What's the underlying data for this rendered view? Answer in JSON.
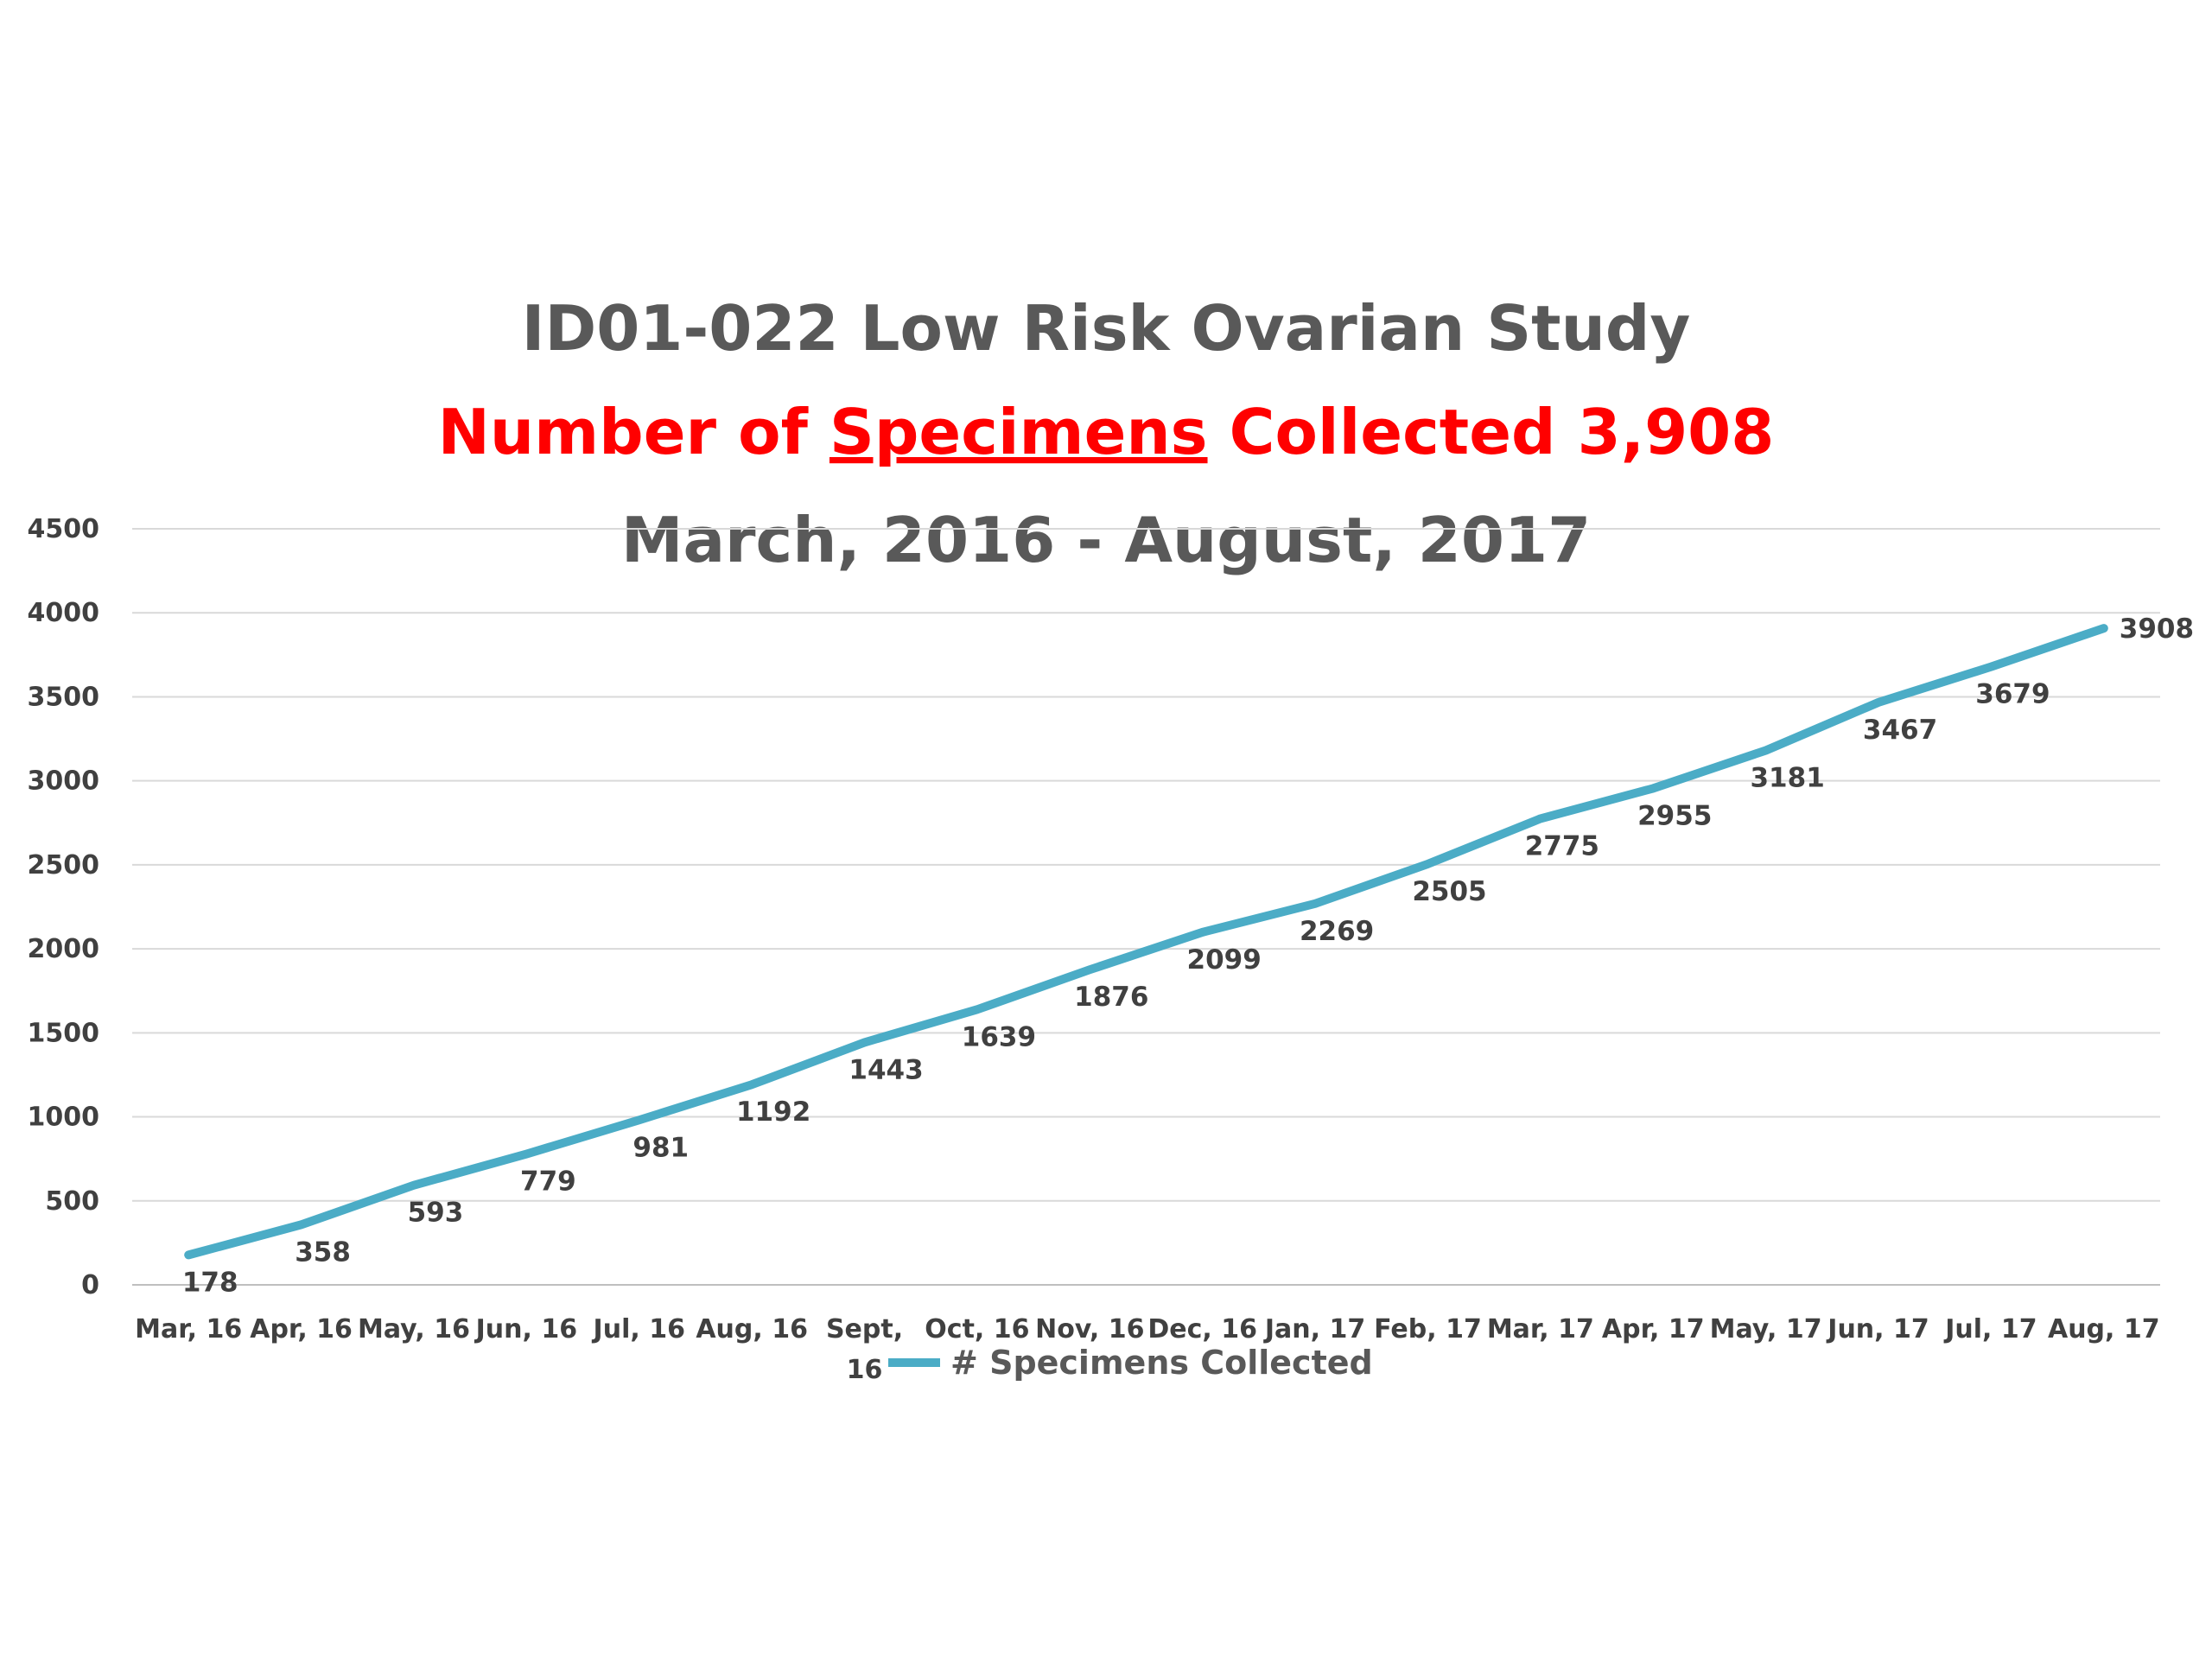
{
  "chart_data": {
    "type": "line",
    "title": "ID01-022 Low Risk Ovarian Study",
    "subtitle_prefix": "Number of ",
    "subtitle_underlined": "Specimens",
    "subtitle_suffix": " Collected 3,908",
    "date_range": "March, 2016 - August, 2017",
    "categories": [
      "Mar, 16",
      "Apr, 16",
      "May, 16",
      "Jun, 16",
      "Jul, 16",
      "Aug, 16",
      "Sept, 16",
      "Oct, 16",
      "Nov, 16",
      "Dec, 16",
      "Jan, 17",
      "Feb, 17",
      "Mar, 17",
      "Apr, 17",
      "May, 17",
      "Jun, 17",
      "Jul, 17",
      "Aug, 17"
    ],
    "series": [
      {
        "name": "# Specimens Collected",
        "values": [
          178,
          358,
          593,
          779,
          981,
          1192,
          1443,
          1639,
          1876,
          2099,
          2269,
          2505,
          2775,
          2955,
          3181,
          3467,
          3679,
          3908
        ]
      }
    ],
    "yticks": [
      0,
      500,
      1000,
      1500,
      2000,
      2500,
      3000,
      3500,
      4000,
      4500
    ],
    "ylim": [
      0,
      4500
    ],
    "grid": true,
    "legend_position": "bottom",
    "colors": {
      "line": "#4bacc6",
      "title": "#595959",
      "subtitle": "#ff0000",
      "labels": "#404040",
      "grid": "#d9d9d9"
    }
  }
}
